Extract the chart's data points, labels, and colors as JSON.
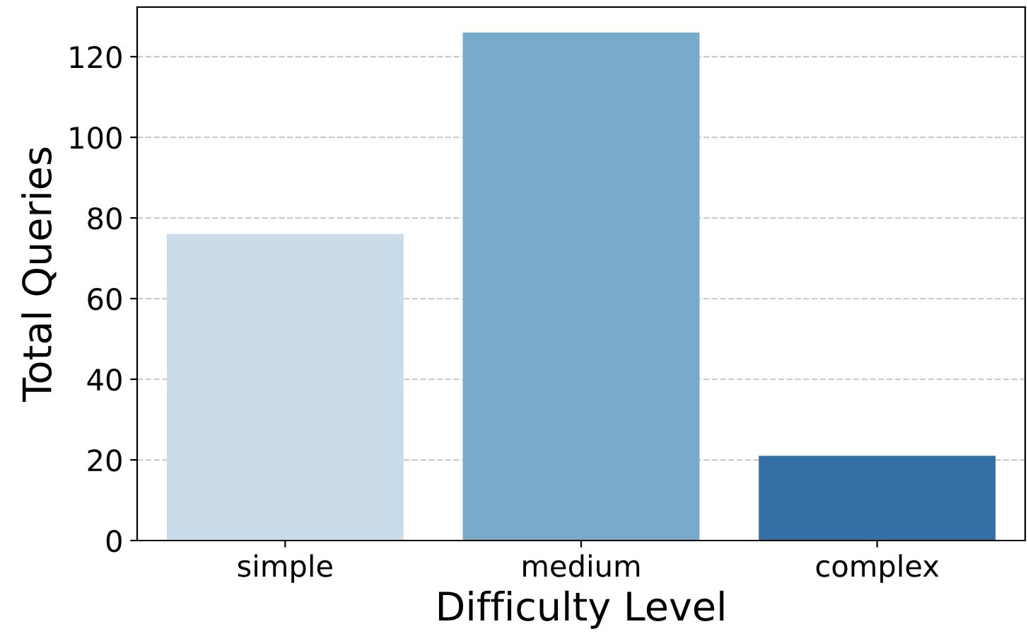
{
  "chart_data": {
    "type": "bar",
    "xlabel": "Difficulty Level",
    "ylabel": "Total Queries",
    "categories": [
      "simple",
      "medium",
      "complex"
    ],
    "values": [
      76,
      126,
      21
    ],
    "colors": [
      "#cadbea",
      "#78aac9",
      "#3470a5"
    ],
    "ylim": [
      0,
      132.3
    ],
    "yticks": [
      0,
      20,
      40,
      60,
      80,
      100,
      120
    ],
    "grid": "y",
    "line_style": "dashed"
  }
}
